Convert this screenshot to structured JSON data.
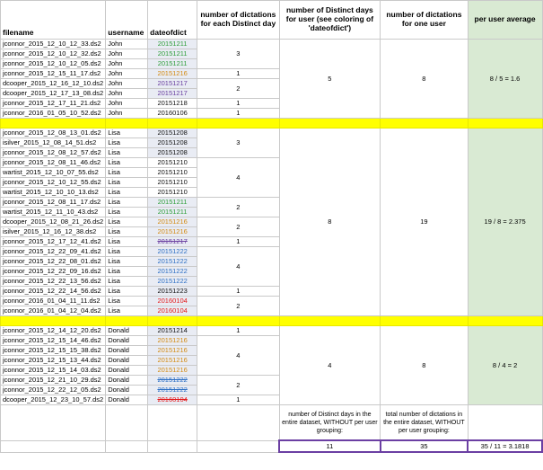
{
  "headers": {
    "filename": "filename",
    "username": "username",
    "dateofdict": "dateofdict",
    "per_day": "number of dictations for each Distinct day",
    "distinct_days": "number of Distinct days for user (see coloring of 'dateofdict')",
    "per_user": "number of dictations for one user",
    "avg": "per user average"
  },
  "john": {
    "rows": [
      {
        "file": "jconnor_2015_12_10_12_33.ds2",
        "user": "John",
        "date": "20151211",
        "color": "green"
      },
      {
        "file": "jconnor_2015_12_10_12_32.ds2",
        "user": "John",
        "date": "20151211",
        "color": "green"
      },
      {
        "file": "jconnor_2015_12_10_12_05.ds2",
        "user": "John",
        "date": "20151211",
        "color": "green"
      },
      {
        "file": "jconnor_2015_12_15_11_17.ds2",
        "user": "John",
        "date": "20151216",
        "color": "orange"
      },
      {
        "file": "dcooper_2015_12_16_12_10.ds2",
        "user": "John",
        "date": "20151217",
        "color": "purple"
      },
      {
        "file": "dcooper_2015_12_17_13_08.ds2",
        "user": "John",
        "date": "20151217",
        "color": "purple"
      },
      {
        "file": "jconnor_2015_12_17_11_21.ds2",
        "user": "John",
        "date": "20151218",
        "color": "black"
      },
      {
        "file": "jconnor_2016_01_05_10_52.ds2",
        "user": "John",
        "date": "20160106",
        "color": "black"
      }
    ],
    "groups": [
      "3",
      "1",
      "2",
      "1",
      "1"
    ],
    "distinct": "5",
    "count": "8",
    "avg": "8 / 5 = 1.6"
  },
  "lisa": {
    "rows": [
      {
        "file": "jconnor_2015_12_08_13_01.ds2",
        "user": "Lisa",
        "date": "20151208",
        "color": "black"
      },
      {
        "file": "isilver_2015_12_08_14_51.ds2",
        "user": "Lisa",
        "date": "20151208",
        "color": "black"
      },
      {
        "file": "jconnor_2015_12_08_12_57.ds2",
        "user": "Lisa",
        "date": "20151208",
        "color": "black"
      },
      {
        "file": "jconnor_2015_12_08_11_46.ds2",
        "user": "Lisa",
        "date": "20151210",
        "color": "black"
      },
      {
        "file": "wartist_2015_12_10_07_55.ds2",
        "user": "Lisa",
        "date": "20151210",
        "color": "black"
      },
      {
        "file": "jconnor_2015_12_10_12_55.ds2",
        "user": "Lisa",
        "date": "20151210",
        "color": "black"
      },
      {
        "file": "wartist_2015_12_10_10_13.ds2",
        "user": "Lisa",
        "date": "20151210",
        "color": "black"
      },
      {
        "file": "jconnor_2015_12_08_11_17.ds2",
        "user": "Lisa",
        "date": "20151211",
        "color": "green"
      },
      {
        "file": "wartist_2015_12_11_10_43.ds2",
        "user": "Lisa",
        "date": "20151211",
        "color": "green"
      },
      {
        "file": "dcooper_2015_12_08_21_26.ds2",
        "user": "Lisa",
        "date": "20151216",
        "color": "orange"
      },
      {
        "file": "isilver_2015_12_16_12_38.ds2",
        "user": "Lisa",
        "date": "20151216",
        "color": "orange"
      },
      {
        "file": "jconnor_2015_12_17_12_41.ds2",
        "user": "Lisa",
        "date": "20151217",
        "color": "purple"
      },
      {
        "file": "jconnor_2015_12_22_09_41.ds2",
        "user": "Lisa",
        "date": "20151222",
        "color": "blue"
      },
      {
        "file": "jconnor_2015_12_22_08_01.ds2",
        "user": "Lisa",
        "date": "20151222",
        "color": "blue"
      },
      {
        "file": "jconnor_2015_12_22_09_16.ds2",
        "user": "Lisa",
        "date": "20151222",
        "color": "blue"
      },
      {
        "file": "jconnor_2015_12_22_13_56.ds2",
        "user": "Lisa",
        "date": "20151222",
        "color": "blue"
      },
      {
        "file": "jconnor_2015_12_22_14_56.ds2",
        "user": "Lisa",
        "date": "20151223",
        "color": "black"
      },
      {
        "file": "jconnor_2016_01_04_11_11.ds2",
        "user": "Lisa",
        "date": "20160104",
        "color": "red"
      },
      {
        "file": "jconnor_2016_01_04_12_04.ds2",
        "user": "Lisa",
        "date": "20160104",
        "color": "red"
      }
    ],
    "groups": [
      "3",
      "4",
      "2",
      "2",
      "1",
      "4",
      "1",
      "2"
    ],
    "distinct": "8",
    "count": "19",
    "avg": "19 / 8 = 2.375"
  },
  "donald": {
    "rows": [
      {
        "file": "jconnor_2015_12_14_12_20.ds2",
        "user": "Donald",
        "date": "20151214",
        "color": "black"
      },
      {
        "file": "jconnor_2015_12_15_14_46.ds2",
        "user": "Donald",
        "date": "20151216",
        "color": "orange"
      },
      {
        "file": "jconnor_2015_12_15_15_38.ds2",
        "user": "Donald",
        "date": "20151216",
        "color": "orange"
      },
      {
        "file": "jconnor_2015_12_15_13_44.ds2",
        "user": "Donald",
        "date": "20151216",
        "color": "orange"
      },
      {
        "file": "jconnor_2015_12_15_14_03.ds2",
        "user": "Donald",
        "date": "20151216",
        "color": "orange"
      },
      {
        "file": "jconnor_2015_12_21_10_29.ds2",
        "user": "Donald",
        "date": "20151222",
        "color": "blue"
      },
      {
        "file": "jconnor_2015_12_22_12_05.ds2",
        "user": "Donald",
        "date": "20151222",
        "color": "blue"
      },
      {
        "file": "dcooper_2015_12_23_10_57.ds2",
        "user": "Donald",
        "date": "20160104",
        "color": "red"
      }
    ],
    "groups": [
      "1",
      "4",
      "2",
      "1"
    ],
    "distinct": "4",
    "count": "8",
    "avg": "8 / 4 = 2"
  },
  "footer": {
    "distinct_note": "number of Distinct days in the entire dataset, WITHOUT per user grouping:",
    "total_note": "total number of dictations in the entire dataset, WITHOUT per user grouping:",
    "distinct_total": "11",
    "dictation_total": "35",
    "overall_avg": "35 / 11 = 3.1818"
  }
}
